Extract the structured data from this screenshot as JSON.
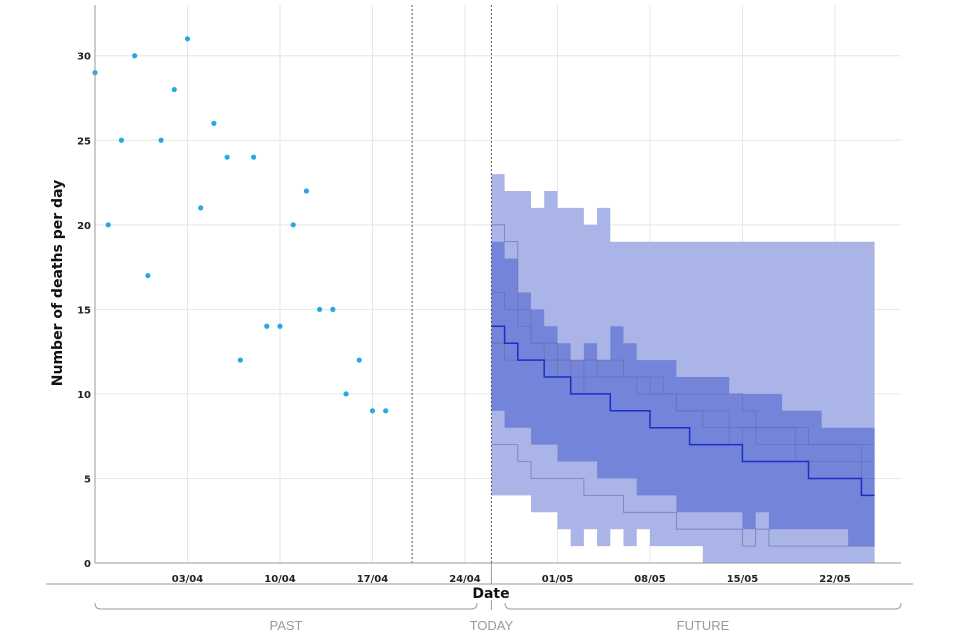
{
  "chart_data": {
    "type": "line",
    "xlabel": "Date",
    "ylabel": "Number of deaths per day",
    "ylim": [
      0,
      33
    ],
    "xlim": [
      "2020-03-27",
      "2020-05-27"
    ],
    "y_ticks": [
      0,
      5,
      10,
      15,
      20,
      25,
      30
    ],
    "x_ticks": [
      {
        "date": "2020-04-03",
        "label": "03/04"
      },
      {
        "date": "2020-04-10",
        "label": "10/04"
      },
      {
        "date": "2020-04-17",
        "label": "17/04"
      },
      {
        "date": "2020-04-24",
        "label": "24/04"
      },
      {
        "date": "2020-05-01",
        "label": "01/05"
      },
      {
        "date": "2020-05-08",
        "label": "08/05"
      },
      {
        "date": "2020-05-15",
        "label": "15/05"
      },
      {
        "date": "2020-05-22",
        "label": "22/05"
      }
    ],
    "grid": true,
    "periods": {
      "past": "PAST",
      "today": "TODAY",
      "future": "FUTURE"
    },
    "markers": {
      "data_cutoff": "2020-04-20",
      "today": "2020-04-26"
    },
    "colors": {
      "observed": "#29a8e0",
      "outer_band": "#aab4e6",
      "inner_band": "#7484d8",
      "median": "#1a2fc8",
      "sample": "#6570b0"
    },
    "observed": {
      "dates": [
        "2020-03-27",
        "2020-03-28",
        "2020-03-29",
        "2020-03-30",
        "2020-03-31",
        "2020-04-01",
        "2020-04-02",
        "2020-04-03",
        "2020-04-04",
        "2020-04-05",
        "2020-04-06",
        "2020-04-07",
        "2020-04-08",
        "2020-04-09",
        "2020-04-10",
        "2020-04-11",
        "2020-04-12",
        "2020-04-13",
        "2020-04-14",
        "2020-04-15",
        "2020-04-16",
        "2020-04-17",
        "2020-04-18",
        "2020-04-19",
        "2020-04-20"
      ],
      "values": [
        29,
        20,
        25,
        30,
        17,
        25,
        28,
        31,
        21,
        26,
        24,
        12,
        24,
        14,
        14,
        20,
        22,
        15,
        15,
        10,
        12,
        9,
        9,
        null,
        null
      ]
    },
    "forecast": {
      "dates": [
        "2020-04-26",
        "2020-04-27",
        "2020-04-28",
        "2020-04-29",
        "2020-04-30",
        "2020-05-01",
        "2020-05-02",
        "2020-05-03",
        "2020-05-04",
        "2020-05-05",
        "2020-05-06",
        "2020-05-07",
        "2020-05-08",
        "2020-05-09",
        "2020-05-10",
        "2020-05-11",
        "2020-05-12",
        "2020-05-13",
        "2020-05-14",
        "2020-05-15",
        "2020-05-16",
        "2020-05-17",
        "2020-05-18",
        "2020-05-19",
        "2020-05-20",
        "2020-05-21",
        "2020-05-22",
        "2020-05-23",
        "2020-05-24",
        "2020-05-25"
      ],
      "outer_upper": [
        23,
        22,
        22,
        21,
        22,
        21,
        21,
        20,
        21,
        19,
        19,
        19,
        19,
        19,
        19,
        19,
        19,
        19,
        19,
        19,
        19,
        19,
        19,
        19,
        19,
        19,
        19,
        19,
        19,
        19
      ],
      "outer_lower": [
        4,
        4,
        4,
        3,
        3,
        2,
        1,
        2,
        1,
        2,
        1,
        2,
        1,
        1,
        1,
        1,
        0,
        0,
        0,
        0,
        0,
        0,
        0,
        0,
        0,
        0,
        0,
        0,
        0,
        0
      ],
      "inner_upper": [
        19,
        18,
        16,
        15,
        14,
        13,
        12,
        13,
        12,
        14,
        13,
        12,
        12,
        12,
        11,
        11,
        11,
        11,
        10,
        10,
        10,
        10,
        9,
        9,
        9,
        8,
        8,
        8,
        8,
        8
      ],
      "inner_lower": [
        9,
        8,
        8,
        7,
        7,
        6,
        6,
        6,
        5,
        5,
        5,
        4,
        4,
        4,
        3,
        3,
        3,
        3,
        3,
        2,
        3,
        2,
        2,
        2,
        2,
        2,
        2,
        1,
        1,
        1
      ],
      "median": [
        14,
        13,
        12,
        12,
        11,
        11,
        10,
        10,
        10,
        9,
        9,
        9,
        8,
        8,
        8,
        7,
        7,
        7,
        7,
        6,
        6,
        6,
        6,
        6,
        5,
        5,
        5,
        5,
        4,
        4
      ],
      "samples": [
        [
          20,
          19,
          15,
          13,
          13,
          12,
          10,
          12,
          12,
          12,
          11,
          10,
          10,
          10,
          9,
          9,
          8,
          8,
          7,
          8,
          7,
          7,
          7,
          6,
          6,
          6,
          6,
          6,
          5,
          5
        ],
        [
          16,
          15,
          14,
          13,
          12,
          12,
          12,
          12,
          11,
          11,
          11,
          11,
          11,
          10,
          10,
          10,
          10,
          10,
          10,
          9,
          8,
          8,
          8,
          7,
          7,
          7,
          7,
          7,
          6,
          6
        ],
        [
          7,
          7,
          6,
          5,
          5,
          5,
          5,
          4,
          4,
          4,
          3,
          3,
          3,
          3,
          2,
          2,
          2,
          2,
          2,
          1,
          2,
          1,
          1,
          1,
          1,
          1,
          1,
          1,
          1,
          1
        ],
        [
          13,
          12,
          12,
          12,
          12,
          11,
          11,
          11,
          11,
          11,
          11,
          11,
          10,
          10,
          9,
          9,
          9,
          9,
          8,
          8,
          8,
          8,
          8,
          8,
          7,
          7,
          7,
          7,
          7,
          7
        ]
      ]
    }
  }
}
